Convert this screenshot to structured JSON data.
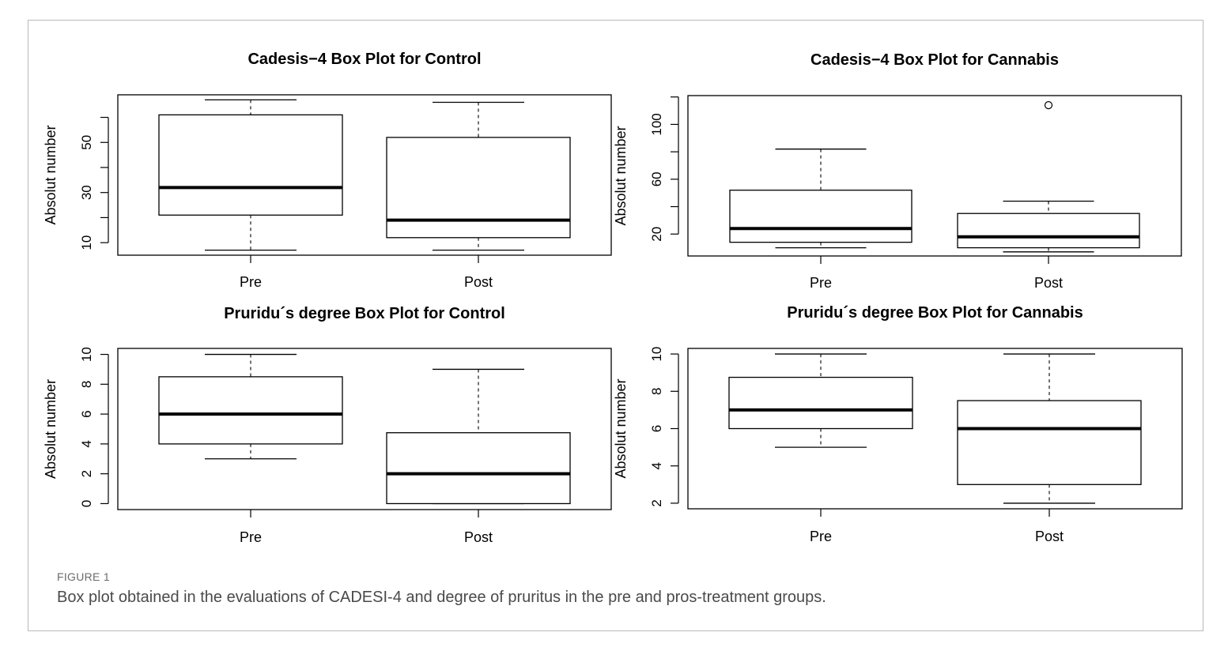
{
  "figure": {
    "label": "FIGURE 1",
    "caption": "Box plot obtained in the evaluations of CADESI-4 and degree of pruritus in the pre and pros-treatment groups."
  },
  "chart_data": [
    {
      "type": "box",
      "title": "Cadesis−4 Box Plot for Control",
      "ylabel": "Absolut number",
      "categories": [
        "Pre",
        "Post"
      ],
      "yticks": [
        10,
        30,
        50
      ],
      "ylim": [
        5,
        69
      ],
      "boxes": [
        {
          "category": "Pre",
          "min": 7,
          "q1": 21,
          "median": 32,
          "q3": 61,
          "max": 67
        },
        {
          "category": "Post",
          "min": 7,
          "q1": 12,
          "median": 19,
          "q3": 52,
          "max": 66
        }
      ],
      "outliers": []
    },
    {
      "type": "box",
      "title": "Cadesis−4 Box Plot for Cannabis",
      "ylabel": "Absolut number",
      "categories": [
        "Pre",
        "Post"
      ],
      "yticks": [
        20,
        60,
        100
      ],
      "ylim": [
        4,
        121
      ],
      "boxes": [
        {
          "category": "Pre",
          "min": 10,
          "q1": 14,
          "median": 24,
          "q3": 52,
          "max": 82
        },
        {
          "category": "Post",
          "min": 7,
          "q1": 10,
          "median": 18,
          "q3": 35,
          "max": 44
        }
      ],
      "outliers": [
        {
          "category": "Post",
          "value": 114
        }
      ]
    },
    {
      "type": "box",
      "title": "Pruridu´s degree Box Plot for Control",
      "ylabel": "Absolut number",
      "categories": [
        "Pre",
        "Post"
      ],
      "yticks": [
        0,
        2,
        4,
        6,
        8,
        10
      ],
      "ylim": [
        -0.4,
        10.4
      ],
      "boxes": [
        {
          "category": "Pre",
          "min": 3,
          "q1": 4,
          "median": 6,
          "q3": 8.5,
          "max": 10
        },
        {
          "category": "Post",
          "min": 0,
          "q1": 0,
          "median": 2,
          "q3": 4.75,
          "max": 9
        }
      ],
      "outliers": []
    },
    {
      "type": "box",
      "title": "Pruridu´s degree Box Plot for Cannabis",
      "ylabel": "Absolut number",
      "categories": [
        "Pre",
        "Post"
      ],
      "yticks": [
        2,
        4,
        6,
        8,
        10
      ],
      "ylim": [
        1.7,
        10.3
      ],
      "boxes": [
        {
          "category": "Pre",
          "min": 5,
          "q1": 6,
          "median": 7,
          "q3": 8.75,
          "max": 10
        },
        {
          "category": "Post",
          "min": 2,
          "q1": 3,
          "median": 6,
          "q3": 7.5,
          "max": 10
        }
      ],
      "outliers": []
    }
  ]
}
